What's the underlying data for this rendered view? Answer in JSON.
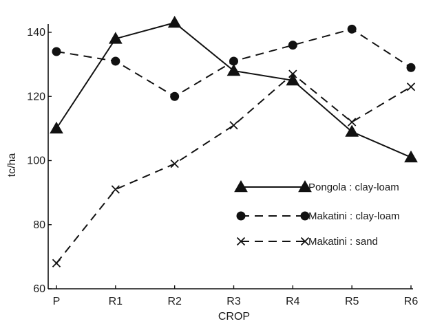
{
  "chart_data": {
    "type": "line",
    "title": "",
    "xlabel": "CROP",
    "ylabel": "tc/ha",
    "categories": [
      "P",
      "R1",
      "R2",
      "R3",
      "R4",
      "R5",
      "R6"
    ],
    "ylim": [
      60,
      145
    ],
    "yticks": [
      60,
      80,
      100,
      120,
      140
    ],
    "grid": false,
    "legend_position": "right",
    "series": [
      {
        "name": "Pongola : clay-loam",
        "values": [
          110,
          138,
          143,
          128,
          125,
          109,
          101
        ],
        "marker": "triangle",
        "line": "solid",
        "color": "#111111"
      },
      {
        "name": "Makatini : clay-loam",
        "values": [
          134,
          131,
          120,
          131,
          136,
          141,
          129
        ],
        "marker": "circle",
        "line": "dashed",
        "color": "#111111"
      },
      {
        "name": "Makatini : sand",
        "values": [
          68,
          91,
          99,
          111,
          127,
          112,
          123
        ],
        "marker": "cross",
        "line": "dashed",
        "color": "#111111"
      }
    ]
  }
}
